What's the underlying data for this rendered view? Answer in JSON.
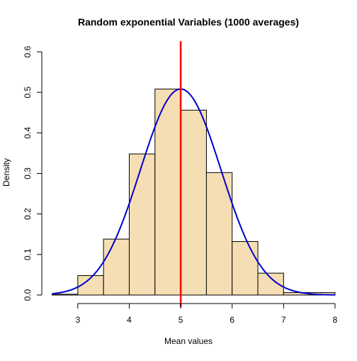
{
  "chart_data": {
    "type": "histogram",
    "title": "Random exponential Variables (1000 averages)",
    "xlabel": "Mean values",
    "ylabel": "Density",
    "xlim": [
      2.3,
      8.0
    ],
    "ylim": [
      0,
      0.6
    ],
    "x_ticks": [
      3,
      4,
      5,
      6,
      7,
      8
    ],
    "y_ticks": [
      0.0,
      0.1,
      0.2,
      0.3,
      0.4,
      0.5,
      0.6
    ],
    "bins": [
      {
        "x0": 2.5,
        "x1": 3.0,
        "density": 0.002
      },
      {
        "x0": 3.0,
        "x1": 3.5,
        "density": 0.048
      },
      {
        "x0": 3.5,
        "x1": 4.0,
        "density": 0.138
      },
      {
        "x0": 4.0,
        "x1": 4.5,
        "density": 0.348
      },
      {
        "x0": 4.5,
        "x1": 5.0,
        "density": 0.508
      },
      {
        "x0": 5.0,
        "x1": 5.5,
        "density": 0.456
      },
      {
        "x0": 5.5,
        "x1": 6.0,
        "density": 0.302
      },
      {
        "x0": 6.0,
        "x1": 6.5,
        "density": 0.132
      },
      {
        "x0": 6.5,
        "x1": 7.0,
        "density": 0.054
      },
      {
        "x0": 7.0,
        "x1": 7.5,
        "density": 0.006
      },
      {
        "x0": 7.5,
        "x1": 8.0,
        "density": 0.006
      }
    ],
    "bar_fill": "#f5deb3",
    "bar_stroke": "#000000",
    "density_curve": {
      "mean": 5.0,
      "sd": 0.785,
      "x_range": [
        2.5,
        8.0
      ],
      "color": "#0000cd"
    },
    "vline": {
      "x": 5.0,
      "color": "#ff0000"
    }
  }
}
